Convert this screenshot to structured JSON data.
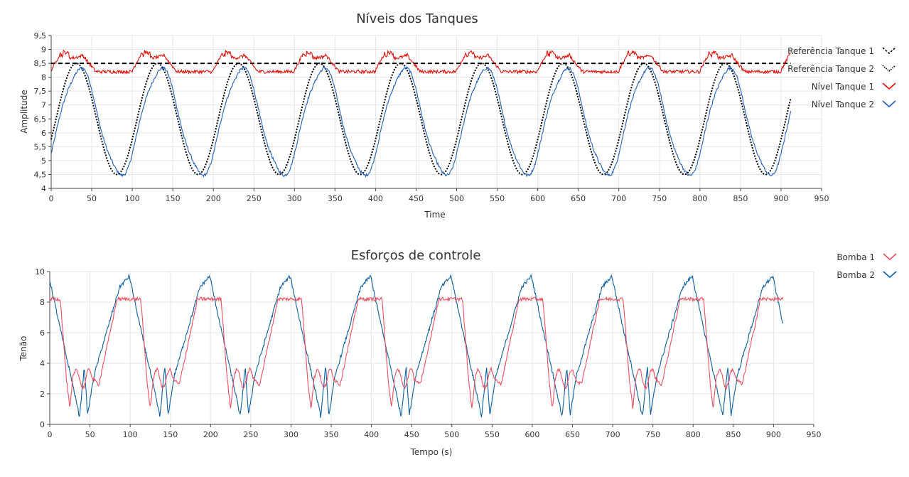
{
  "chart_data": [
    {
      "type": "line",
      "title": "Níveis dos Tanques",
      "xlabel": "Time",
      "ylabel": "Amplitude",
      "xlim": [
        0,
        950
      ],
      "ylim": [
        4,
        9.5
      ],
      "x_ticks": [
        "0",
        "50",
        "100",
        "150",
        "200",
        "250",
        "300",
        "350",
        "400",
        "450",
        "500",
        "550",
        "600",
        "650",
        "700",
        "750",
        "800",
        "850",
        "900",
        "950"
      ],
      "y_ticks": [
        "4",
        "4,5",
        "5",
        "5,5",
        "6",
        "6,5",
        "7",
        "7,5",
        "8",
        "8,5",
        "9",
        "9,5"
      ],
      "grid": true,
      "legend_position": "right",
      "x_range_data": [
        0,
        912
      ],
      "series": [
        {
          "name": "Referência Tanque 1",
          "style": "dashed",
          "color": "#000000",
          "value": 8.5
        },
        {
          "name": "Referência Tanque 2",
          "style": "dotted",
          "color": "#000000",
          "mean": 6.5,
          "amplitude": 2.0,
          "period": 100,
          "peak_at": 31
        },
        {
          "name": "Nível Tanque 1",
          "style": "solid",
          "color": "#e3120b",
          "low": 8.2,
          "high": 8.8,
          "peak": 9.05,
          "period": 100
        },
        {
          "name": "Nível Tanque 2",
          "style": "solid",
          "color": "#1f5fbf",
          "mean": 6.4,
          "amplitude": 1.9,
          "period": 100,
          "peak_at": 35
        }
      ]
    },
    {
      "type": "line",
      "title": "Esforços de controle",
      "xlabel": "Tempo (s)",
      "ylabel": "Tenão",
      "xlim": [
        0,
        950
      ],
      "ylim": [
        0,
        10
      ],
      "x_ticks": [
        "0",
        "50",
        "100",
        "150",
        "200",
        "250",
        "300",
        "350",
        "400",
        "450",
        "500",
        "550",
        "600",
        "650",
        "700",
        "750",
        "800",
        "850",
        "900",
        "950"
      ],
      "y_ticks": [
        "0",
        "2",
        "4",
        "6",
        "8",
        "10"
      ],
      "grid": true,
      "legend_position": "right",
      "x_range_data": [
        0,
        912
      ],
      "series": [
        {
          "name": "Bomba 1",
          "style": "solid",
          "color": "#f04f5f",
          "high": 8.3,
          "low": 1.0,
          "period": 100
        },
        {
          "name": "Bomba 2",
          "style": "solid",
          "color": "#0b5fa5",
          "high": 9.7,
          "low": 0.5,
          "period": 100
        }
      ]
    }
  ]
}
